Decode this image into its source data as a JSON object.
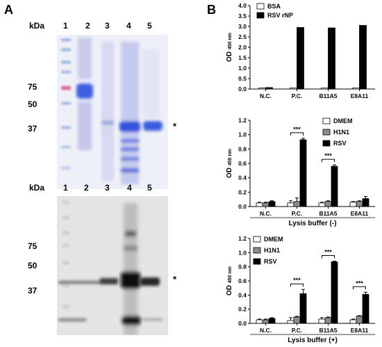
{
  "panel_a": {
    "letter": "A",
    "gel_top": {
      "kda_label": "kDa",
      "lanes": [
        "1",
        "2",
        "3",
        "4",
        "5"
      ],
      "markers": [
        "75",
        "50",
        "37"
      ],
      "asterisk": "*"
    },
    "gel_bottom": {
      "kda_label": "kDa",
      "lanes": [
        "1",
        "2",
        "3",
        "4",
        "5"
      ],
      "markers": [
        "75",
        "50",
        "37"
      ],
      "asterisk": "*"
    }
  },
  "panel_b": {
    "letter": "B"
  },
  "chart_data": [
    {
      "type": "bar",
      "title": "",
      "ylabel_main": "OD",
      "ylabel_sub": "450 nm",
      "xlabel": "",
      "categories": [
        "N.C.",
        "P.C.",
        "B11A5",
        "E8A11"
      ],
      "ylim": [
        0,
        4.0
      ],
      "yticks": [
        "0.0",
        "0.5",
        "1.0",
        "1.5",
        "2.0",
        "2.5",
        "3.0",
        "3.5",
        "4.0"
      ],
      "series": [
        {
          "name": "BSA",
          "color": "#ffffff",
          "values": [
            0.05,
            0.05,
            0.05,
            0.05
          ],
          "errors": [
            0,
            0,
            0,
            0
          ]
        },
        {
          "name": "RSV rNP",
          "color": "#000000",
          "values": [
            0.07,
            2.95,
            2.93,
            3.05
          ],
          "errors": [
            0,
            0,
            0,
            0
          ]
        }
      ],
      "legend_position": "top-left",
      "significance": []
    },
    {
      "type": "bar",
      "title": "",
      "ylabel_main": "OD",
      "ylabel_sub": "450 nm",
      "xlabel": "Lysis buffer (-)",
      "categories": [
        "N.C.",
        "P.C.",
        "B11A5",
        "E8A11"
      ],
      "ylim": [
        0,
        1.2
      ],
      "yticks": [
        "0.0",
        "0.2",
        "0.4",
        "0.6",
        "0.8",
        "1.0",
        "1.2"
      ],
      "series": [
        {
          "name": "DMEM",
          "color": "#ffffff",
          "values": [
            0.05,
            0.05,
            0.05,
            0.06
          ],
          "errors": [
            0.01,
            0.03,
            0.01,
            0.01
          ]
        },
        {
          "name": "H1N1",
          "color": "#8c8c8c",
          "values": [
            0.05,
            0.07,
            0.07,
            0.07
          ],
          "errors": [
            0.01,
            0.05,
            0.01,
            0.01
          ]
        },
        {
          "name": "RSV",
          "color": "#000000",
          "values": [
            0.07,
            0.93,
            0.56,
            0.11
          ],
          "errors": [
            0.01,
            0.02,
            0.02,
            0.03
          ]
        }
      ],
      "legend_position": "top-right",
      "significance": [
        {
          "category": "P.C.",
          "label": "***"
        },
        {
          "category": "B11A5",
          "label": "***"
        }
      ]
    },
    {
      "type": "bar",
      "title": "",
      "ylabel_main": "OD",
      "ylabel_sub": "450 nm",
      "xlabel": "Lysis buffer (+)",
      "categories": [
        "N.C.",
        "P.C.",
        "B11A5",
        "E8A11"
      ],
      "ylim": [
        0,
        1.2
      ],
      "yticks": [
        "0.0",
        "0.2",
        "0.4",
        "0.6",
        "0.8",
        "1.0",
        "1.2"
      ],
      "series": [
        {
          "name": "DMEM",
          "color": "#ffffff",
          "values": [
            0.05,
            0.04,
            0.06,
            0.05
          ],
          "errors": [
            0.01,
            0.04,
            0.02,
            0.01
          ]
        },
        {
          "name": "H1N1",
          "color": "#8c8c8c",
          "values": [
            0.05,
            0.09,
            0.08,
            0.1
          ],
          "errors": [
            0.01,
            0.01,
            0.01,
            0.01
          ]
        },
        {
          "name": "RSV",
          "color": "#000000",
          "values": [
            0.07,
            0.42,
            0.87,
            0.41
          ],
          "errors": [
            0.01,
            0.06,
            0.01,
            0.03
          ]
        }
      ],
      "legend_position": "top-left",
      "significance": [
        {
          "category": "P.C.",
          "label": "***"
        },
        {
          "category": "B11A5",
          "label": "***"
        },
        {
          "category": "E8A11",
          "label": "***"
        }
      ]
    }
  ]
}
